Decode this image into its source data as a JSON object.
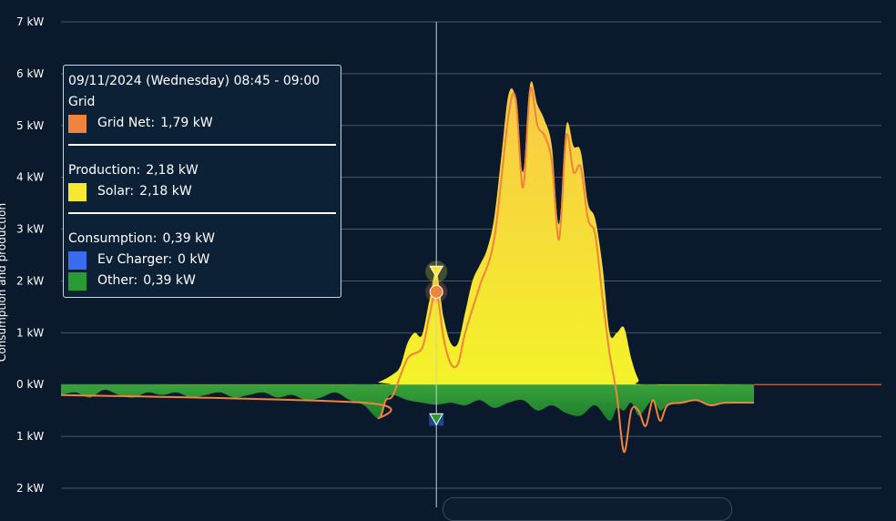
{
  "chart_data": {
    "type": "area",
    "ylabel": "Consumption and production",
    "y_ticks": [
      "7 kW",
      "6 kW",
      "5 kW",
      "4 kW",
      "3 kW",
      "2 kW",
      "1 kW",
      "0 kW",
      "1 kW",
      "2 kW"
    ],
    "ylim": [
      -2,
      7
    ],
    "x_unit": "hour of day",
    "grid": true,
    "series": [
      {
        "name": "Solar",
        "color": "#f5e832",
        "x": [
          0,
          10.5,
          11,
          11.5,
          11.75,
          12,
          12.25,
          12.5,
          12.75,
          13,
          13.25,
          13.5,
          13.75,
          14,
          14.25,
          14.5,
          14.75,
          15,
          15.25,
          15.5,
          15.75,
          16,
          16.25,
          16.5,
          16.75,
          17,
          17.25,
          17.5,
          17.75,
          18,
          18.25,
          18.5,
          18.75,
          19,
          19.25,
          19.5,
          19.75,
          20,
          20.25,
          24
        ],
        "values": [
          0,
          0,
          0.05,
          0.2,
          0.35,
          0.8,
          1.0,
          0.95,
          1.6,
          2.18,
          1.3,
          0.8,
          0.8,
          1.4,
          2.0,
          2.3,
          2.6,
          3.2,
          4.4,
          5.6,
          5.5,
          4.1,
          5.8,
          5.4,
          5.1,
          4.6,
          3.1,
          5.0,
          4.6,
          4.5,
          3.5,
          3.2,
          2.3,
          1.0,
          1.0,
          1.1,
          0.5,
          0.1,
          0,
          0
        ]
      },
      {
        "name": "Other",
        "color": "#2a9a35",
        "x": [
          0,
          0.5,
          1,
          1.5,
          2,
          2.5,
          3,
          3.5,
          4,
          4.5,
          5,
          5.5,
          6,
          6.5,
          7,
          7.5,
          8,
          8.5,
          9,
          9.5,
          10,
          10.5,
          11,
          11.25,
          11.5,
          12,
          12.5,
          13,
          13.5,
          14,
          14.5,
          15,
          15.5,
          16,
          16.5,
          17,
          17.5,
          18,
          18.5,
          19,
          19.25,
          19.5,
          19.75,
          20,
          20.25,
          20.5,
          20.75,
          21,
          21.5,
          22,
          22.5,
          23,
          24
        ],
        "values": [
          -0.2,
          -0.15,
          -0.25,
          -0.1,
          -0.2,
          -0.25,
          -0.15,
          -0.2,
          -0.15,
          -0.25,
          -0.2,
          -0.15,
          -0.25,
          -0.2,
          -0.15,
          -0.25,
          -0.2,
          -0.3,
          -0.25,
          -0.15,
          -0.3,
          -0.4,
          -0.65,
          -0.3,
          -0.2,
          -0.3,
          -0.35,
          -0.39,
          -0.35,
          -0.4,
          -0.3,
          -0.45,
          -0.35,
          -0.3,
          -0.5,
          -0.4,
          -0.55,
          -0.6,
          -0.4,
          -0.7,
          -0.45,
          -0.5,
          -0.35,
          -0.6,
          -0.45,
          -0.3,
          -0.5,
          -0.4,
          -0.35,
          -0.3,
          -0.4,
          -0.35,
          -0.35
        ]
      },
      {
        "name": "Grid Net",
        "color": "#f0843c",
        "x": [
          0,
          10.5,
          11,
          11.25,
          11.5,
          12,
          12.5,
          12.75,
          13,
          13.25,
          13.5,
          13.75,
          14,
          14.5,
          15,
          15.5,
          15.75,
          16,
          16.25,
          16.5,
          16.75,
          17,
          17.25,
          17.5,
          17.75,
          18,
          18.25,
          18.5,
          18.75,
          19,
          19.25,
          19.5,
          19.75,
          20,
          20.25,
          20.5,
          20.75,
          21,
          21.5,
          22,
          22.5,
          23,
          24
        ],
        "values": [
          -0.2,
          -0.35,
          -0.65,
          -0.3,
          -0.2,
          0.5,
          0.7,
          1.3,
          1.79,
          0.9,
          0.4,
          0.4,
          1.0,
          1.9,
          2.8,
          5.2,
          5.5,
          3.8,
          5.7,
          5.0,
          4.8,
          4.3,
          2.8,
          4.8,
          4.1,
          4.2,
          3.2,
          2.9,
          1.7,
          0.6,
          -0.2,
          -1.3,
          -0.5,
          -0.5,
          -0.8,
          -0.3,
          -0.7,
          -0.4,
          -0.35,
          -0.3,
          -0.4,
          -0.35,
          -0.35
        ]
      },
      {
        "name": "Ev Charger",
        "color": "#3a6cf0",
        "x": [
          0,
          24
        ],
        "values": [
          0,
          0
        ]
      }
    ],
    "x_extent": [
      0,
      24
    ]
  },
  "tooltip": {
    "title": "09/11/2024 (Wednesday) 08:45 - 09:00",
    "grid_header": "Grid",
    "grid_net_label": "Grid Net:",
    "grid_net_value": "1,79 kW",
    "production_label": "Production:",
    "production_value": "2,18 kW",
    "solar_label": "Solar:",
    "solar_value": "2,18 kW",
    "consumption_label": "Consumption:",
    "consumption_value": "0,39 kW",
    "ev_label": "Ev Charger:",
    "ev_value": "0 kW",
    "other_label": "Other:",
    "other_value": "0,39 kW",
    "colors": {
      "grid_net": "#f0843c",
      "solar": "#f5e832",
      "ev": "#3a6cf0",
      "other": "#2a9a35"
    }
  },
  "crosshair_x": 13
}
